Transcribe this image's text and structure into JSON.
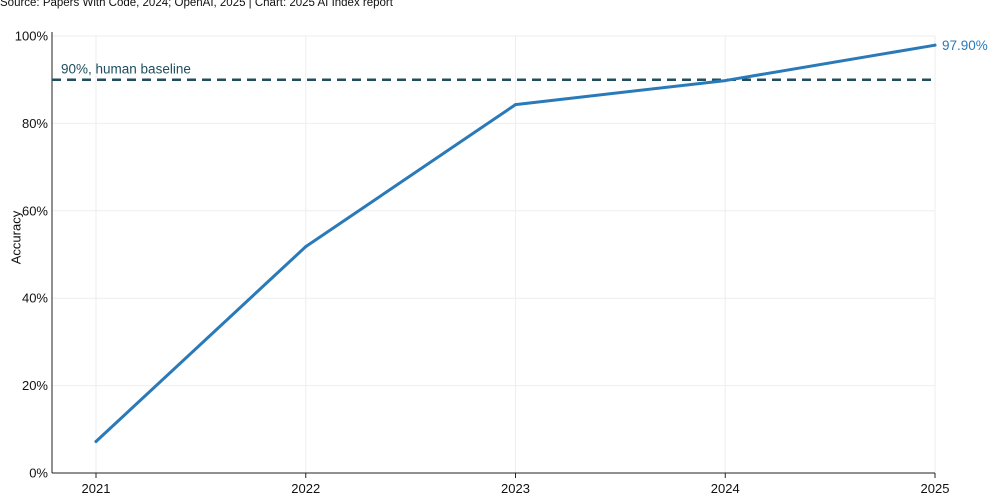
{
  "source": "Source: Papers With Code, 2024; OpenAI, 2025 | Chart: 2025 AI Index report",
  "chart_data": {
    "type": "line",
    "title": "",
    "xlabel": "",
    "ylabel": "Accuracy",
    "x": [
      2021,
      2022,
      2023,
      2024,
      2025
    ],
    "series": [
      {
        "values": [
          7.2,
          51.8,
          84.3,
          89.8,
          97.9
        ],
        "color": "#2a7ab9"
      }
    ],
    "ylim": [
      0,
      100
    ],
    "yticks": [
      "0%",
      "20%",
      "40%",
      "60%",
      "80%",
      "100%"
    ],
    "xticks": [
      "2021",
      "2022",
      "2023",
      "2024",
      "2025"
    ],
    "grid": true,
    "reference_line": {
      "value": 90,
      "label": "90%, human baseline",
      "color": "#1f4e5f",
      "style": "dashed"
    },
    "end_label": "97.90%"
  }
}
